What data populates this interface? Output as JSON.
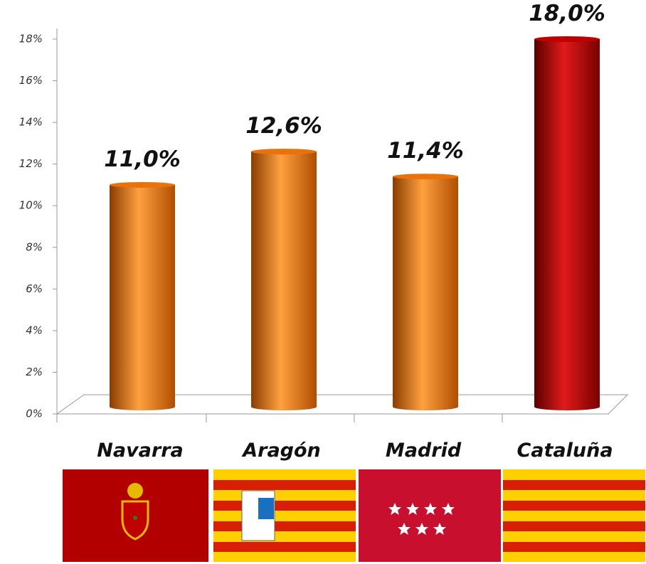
{
  "chart_data": {
    "type": "bar",
    "categories": [
      "Navarra",
      "Aragón",
      "Madrid",
      "Cataluña"
    ],
    "values": [
      11.0,
      12.6,
      11.4,
      18.0
    ],
    "value_labels": [
      "11,0%",
      "12,6%",
      "11,4%",
      "18,0%"
    ],
    "colors": [
      "#e8730c",
      "#e8730c",
      "#e8730c",
      "#c00000"
    ],
    "ylim": [
      0,
      18
    ],
    "yticks": [
      {
        "value": 0,
        "label": "0%"
      },
      {
        "value": 2,
        "label": "2%"
      },
      {
        "value": 4,
        "label": "4%"
      },
      {
        "value": 6,
        "label": "6%"
      },
      {
        "value": 8,
        "label": "8%"
      },
      {
        "value": 10,
        "label": "10%"
      },
      {
        "value": 12,
        "label": "12%"
      },
      {
        "value": 14,
        "label": "14%"
      },
      {
        "value": 16,
        "label": "16%"
      },
      {
        "value": 18,
        "label": "18%"
      }
    ]
  }
}
